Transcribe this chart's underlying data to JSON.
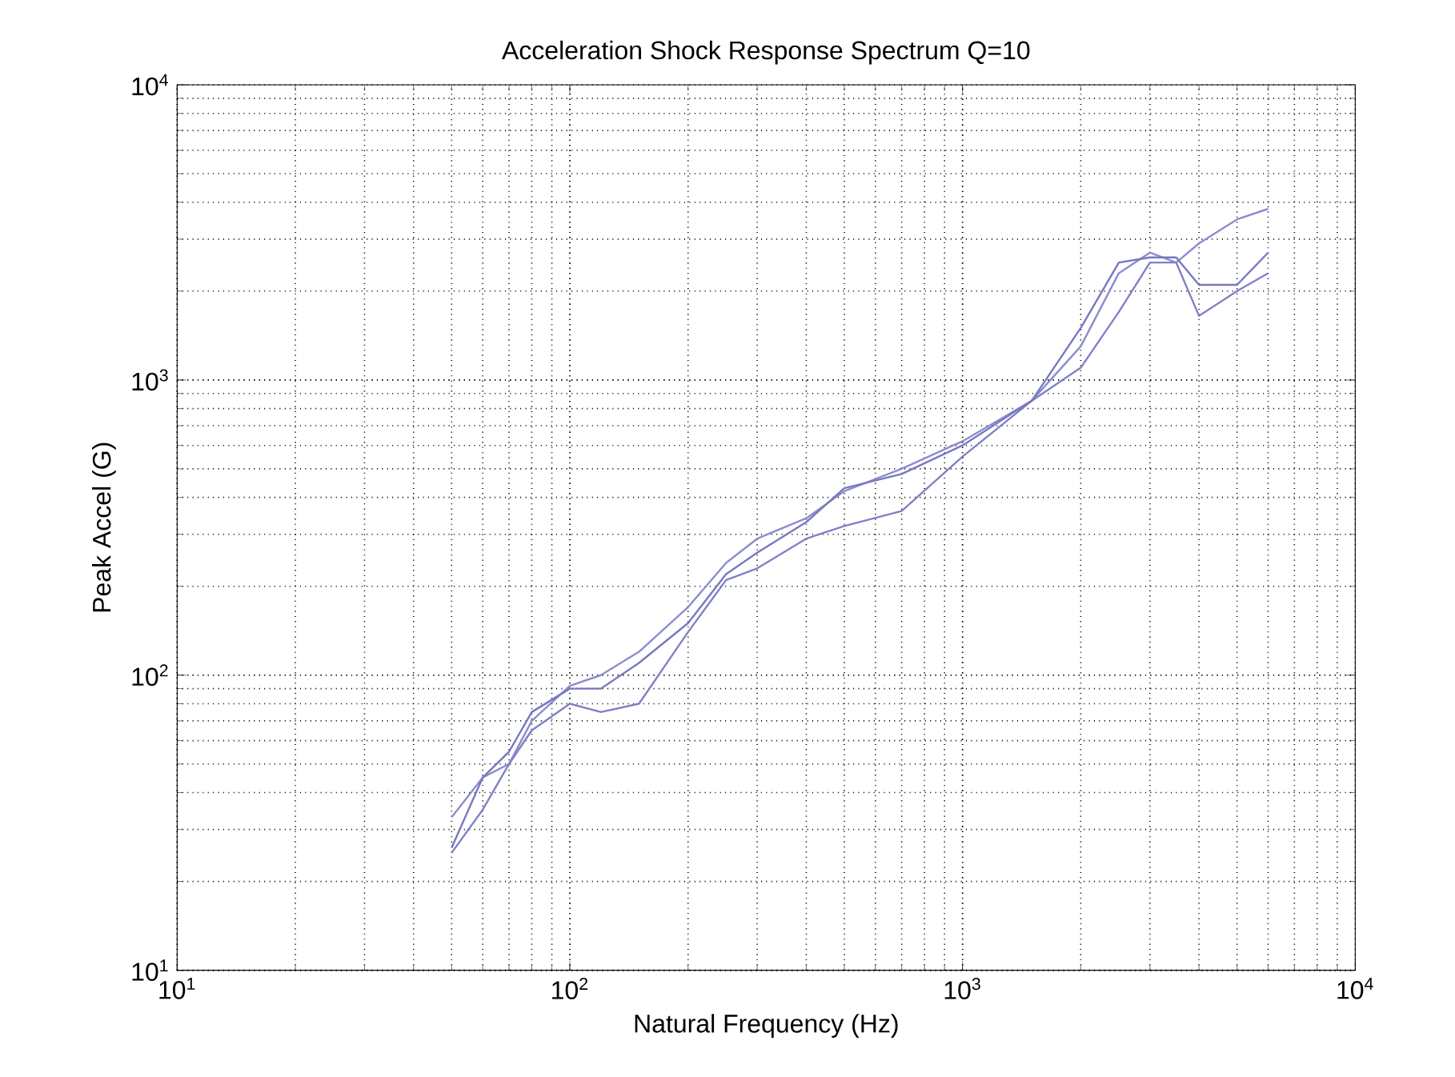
{
  "chart_data": {
    "type": "line",
    "title": "Acceleration Shock Response Spectrum Q=10",
    "xlabel": "Natural Frequency (Hz)",
    "ylabel": "Peak Accel (G)",
    "log": "xy",
    "grid": true,
    "xlim": [
      10,
      10000
    ],
    "ylim": [
      10,
      10000
    ],
    "xticks": [
      {
        "value": 10,
        "label": "10$^{1}$"
      },
      {
        "value": 100,
        "label": "10$^{2}$"
      },
      {
        "value": 1000,
        "label": "10$^{3}$"
      },
      {
        "value": 10000,
        "label": "10$^{4}$"
      }
    ],
    "yticks": [
      {
        "value": 10,
        "label": "10$^{1}$"
      },
      {
        "value": 100,
        "label": "10$^{2}$"
      },
      {
        "value": 1000,
        "label": "10$^{3}$"
      },
      {
        "value": 10000,
        "label": "10$^{4}$"
      }
    ],
    "x": [
      50,
      60,
      70,
      80,
      100,
      120,
      150,
      200,
      250,
      300,
      400,
      500,
      700,
      1000,
      1500,
      2000,
      2500,
      3000,
      3500,
      4000,
      5000,
      6000
    ],
    "series": [
      {
        "color": "#8c8cd0",
        "values": [
          33,
          45,
          50,
          70,
          92,
          100,
          120,
          170,
          240,
          290,
          340,
          420,
          500,
          620,
          850,
          1300,
          2300,
          2700,
          2500,
          2900,
          3500,
          3800
        ]
      },
      {
        "color": "#8080c8",
        "values": [
          25,
          35,
          50,
          65,
          80,
          75,
          80,
          140,
          210,
          230,
          290,
          320,
          360,
          550,
          850,
          1100,
          1700,
          2500,
          2500,
          1650,
          2000,
          2300
        ]
      },
      {
        "color": "#7878c0",
        "values": [
          26,
          45,
          55,
          75,
          90,
          90,
          110,
          150,
          220,
          260,
          330,
          430,
          480,
          600,
          850,
          1500,
          2500,
          2600,
          2600,
          2100,
          2100,
          2700
        ]
      }
    ]
  }
}
